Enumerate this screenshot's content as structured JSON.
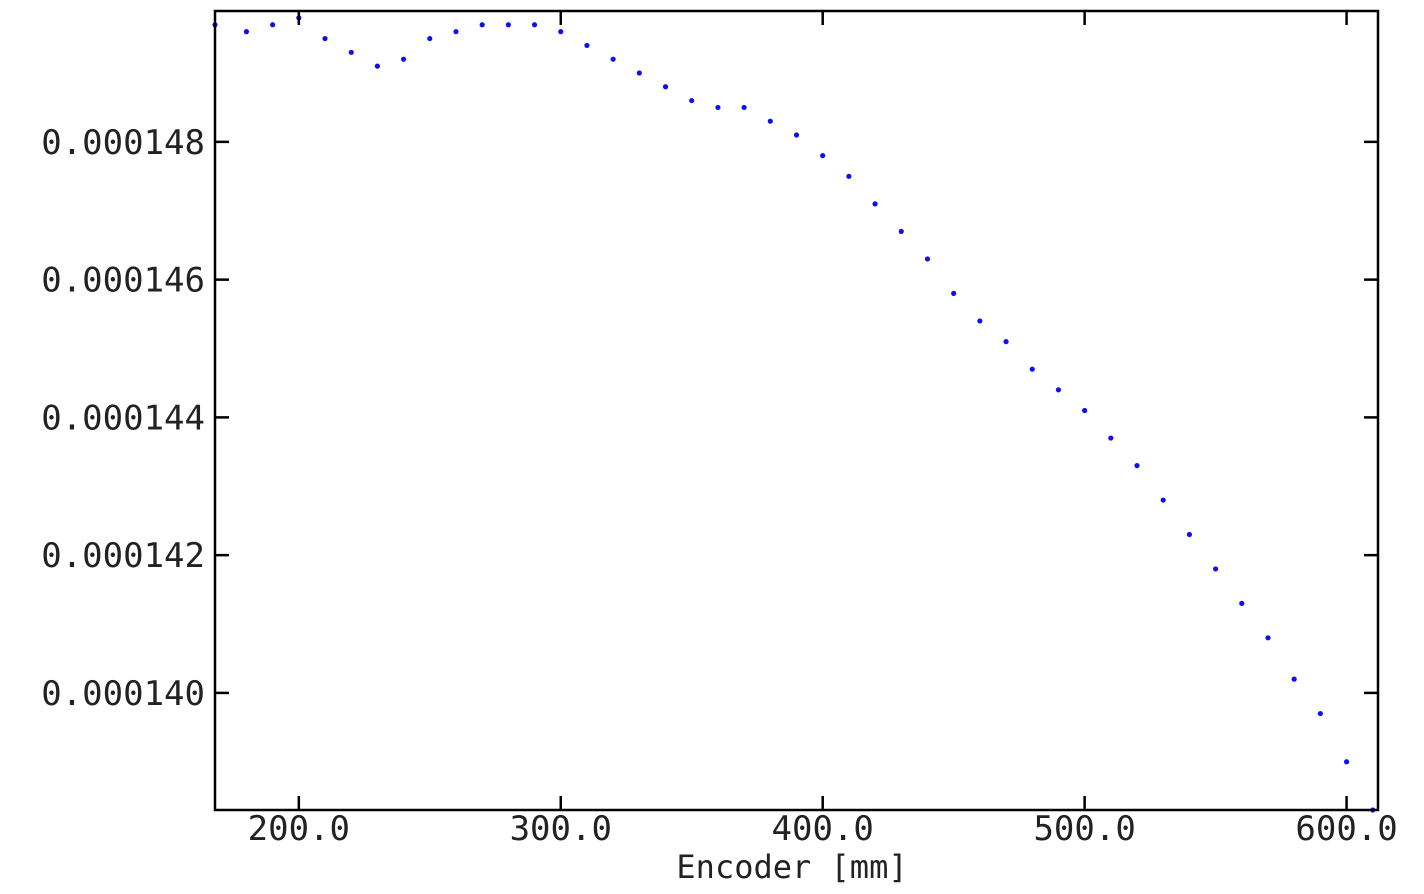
{
  "chart_data": {
    "type": "scatter",
    "title": "",
    "xlabel": "Encoder [mm]",
    "ylabel": "",
    "xlim": [
      168,
      612
    ],
    "ylim": [
      0.0001383,
      0.0001499
    ],
    "x_ticks": [
      200,
      300,
      400,
      500,
      600
    ],
    "x_tick_labels": [
      "200.0",
      "300.0",
      "400.0",
      "500.0",
      "600.0"
    ],
    "y_ticks": [
      0.00014,
      0.000142,
      0.000144,
      0.000146,
      0.000148
    ],
    "y_tick_labels": [
      "0.000140",
      "0.000142",
      "0.000144",
      "0.000146",
      "0.000148"
    ],
    "grid": false,
    "legend": "none",
    "marker_color": "#1010ee",
    "series": [
      {
        "x": [
          168,
          180,
          190,
          200,
          210,
          220,
          230,
          240,
          250,
          260,
          270,
          280,
          290,
          300,
          310,
          320,
          330,
          340,
          350,
          360,
          370,
          380,
          390,
          400,
          410,
          420,
          430,
          440,
          450,
          460,
          470,
          480,
          490,
          500,
          510,
          520,
          530,
          540,
          550,
          560,
          570,
          580,
          590,
          600,
          610
        ],
        "y": [
          0.0001497,
          0.0001496,
          0.0001497,
          0.0001498,
          0.0001495,
          0.0001493,
          0.0001491,
          0.0001492,
          0.0001495,
          0.0001496,
          0.0001497,
          0.0001497,
          0.0001497,
          0.0001496,
          0.0001494,
          0.0001492,
          0.000149,
          0.0001488,
          0.0001486,
          0.0001485,
          0.0001485,
          0.0001483,
          0.0001481,
          0.0001478,
          0.0001475,
          0.0001471,
          0.0001467,
          0.0001463,
          0.0001458,
          0.0001454,
          0.0001451,
          0.0001447,
          0.0001444,
          0.0001441,
          0.0001437,
          0.0001433,
          0.0001428,
          0.0001423,
          0.0001418,
          0.0001413,
          0.0001408,
          0.0001402,
          0.0001397,
          0.000139,
          0.0001383
        ]
      }
    ]
  }
}
